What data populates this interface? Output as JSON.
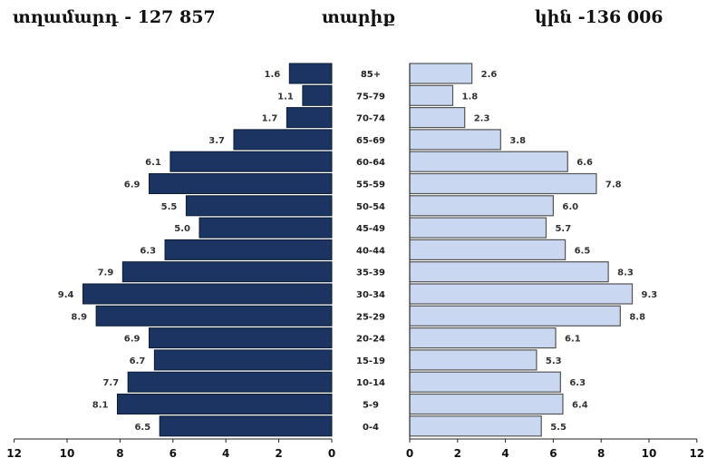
{
  "header": {
    "male": "տղամարդ  - 127 857",
    "age": "տարիք",
    "female": "կին -136 006"
  },
  "colors": {
    "male_bar": "#1b3461",
    "female_bar": "#c9d8f0",
    "female_bar_border": "#555555",
    "axis": "#222222"
  },
  "chart_data": {
    "type": "bar",
    "orientation": "horizontal",
    "categories": [
      "85+",
      "75-79",
      "70-74",
      "65-69",
      "60-64",
      "55-59",
      "50-54",
      "45-49",
      "40-44",
      "35-39",
      "30-34",
      "25-29",
      "20-24",
      "15-19",
      "10-14",
      "5-9",
      "0-4"
    ],
    "series": [
      {
        "values": [
          1.6,
          1.1,
          1.7,
          3.7,
          6.1,
          6.9,
          5.5,
          5.0,
          6.3,
          7.9,
          9.4,
          8.9,
          6.9,
          6.7,
          7.7,
          8.1,
          6.5
        ],
        "value_labels": [
          "1.6",
          "1.1",
          "1.7",
          "3.7",
          "6.1",
          "6.9",
          "5.5",
          "5.0",
          "6.3",
          "7.9",
          "9.4",
          "8.9",
          "6.9",
          "6.7",
          "7.7",
          "8.1",
          "6.5"
        ]
      },
      {
        "values": [
          2.6,
          1.8,
          2.3,
          3.8,
          6.6,
          7.8,
          6.0,
          5.7,
          6.5,
          8.3,
          9.3,
          8.8,
          6.1,
          5.3,
          6.3,
          6.4,
          5.5
        ],
        "value_labels": [
          "2.6",
          "1.8",
          "2.3",
          "3.8",
          "6.6",
          "7.8",
          "6.0",
          "5.7",
          "6.5",
          "8.3",
          "9.3",
          "8.8",
          "6.1",
          "5.3",
          "6.3",
          "6.4",
          "5.5"
        ]
      }
    ],
    "left_axis_ticks": [
      "12",
      "10",
      "8",
      "6",
      "4",
      "2",
      "0"
    ],
    "right_axis_ticks": [
      "0",
      "2",
      "4",
      "6",
      "8",
      "10",
      "12"
    ],
    "xlim": [
      0,
      12
    ]
  }
}
